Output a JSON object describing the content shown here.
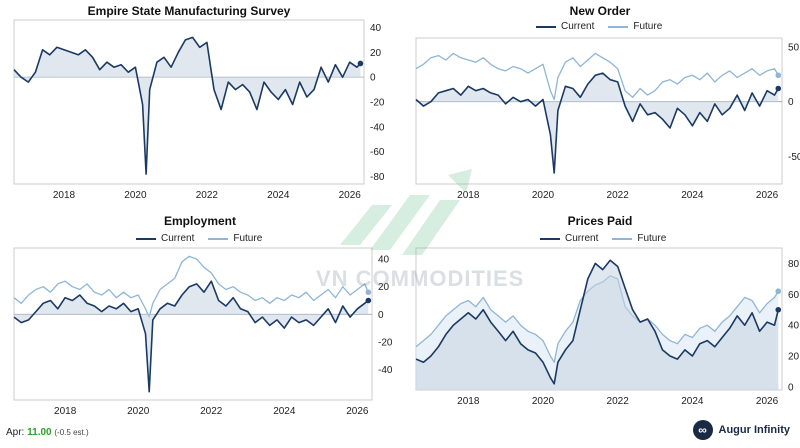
{
  "footer": {
    "label": "Apr:",
    "value": "11.00",
    "estimate": "(-0.5 est.)"
  },
  "brand": {
    "name": "Augur Infinity",
    "logo_icon": "infinity-icon"
  },
  "watermark": {
    "text": "VN COMMODITIES"
  },
  "colors": {
    "current": "#1b3a63",
    "future": "#8fb6d6",
    "fill": "#c7d3e2",
    "axis": "#cccccc"
  },
  "chart_data": [
    {
      "type": "line",
      "title": "Empire State Manufacturing Survey",
      "xlim": [
        2016.6,
        2026.4
      ],
      "ylim": [
        -86,
        46
      ],
      "xticks": [
        2018,
        2020,
        2022,
        2024,
        2026
      ],
      "yticks": [
        40,
        20,
        0,
        -20,
        -40,
        -60,
        -80
      ],
      "legend": null,
      "series": [
        {
          "name": "",
          "key": "current",
          "x": [
            2016.6,
            2016.8,
            2017.0,
            2017.2,
            2017.4,
            2017.6,
            2017.8,
            2018.0,
            2018.2,
            2018.4,
            2018.6,
            2018.8,
            2019.0,
            2019.2,
            2019.4,
            2019.6,
            2019.8,
            2020.0,
            2020.2,
            2020.3,
            2020.4,
            2020.6,
            2020.8,
            2021.0,
            2021.2,
            2021.4,
            2021.6,
            2021.8,
            2022.0,
            2022.2,
            2022.4,
            2022.6,
            2022.8,
            2023.0,
            2023.2,
            2023.4,
            2023.6,
            2023.8,
            2024.0,
            2024.2,
            2024.4,
            2024.6,
            2024.8,
            2025.0,
            2025.2,
            2025.4,
            2025.6,
            2025.8,
            2026.0,
            2026.2,
            2026.3
          ],
          "values": [
            6,
            0,
            -4,
            4,
            22,
            18,
            24,
            22,
            20,
            18,
            22,
            16,
            6,
            12,
            8,
            10,
            4,
            8,
            -22,
            -78,
            -10,
            12,
            16,
            8,
            20,
            30,
            32,
            24,
            28,
            -10,
            -26,
            -4,
            -10,
            -6,
            -12,
            -26,
            -4,
            -12,
            -18,
            -10,
            -22,
            -4,
            -16,
            -10,
            8,
            -4,
            10,
            0,
            12,
            8,
            11
          ]
        }
      ]
    },
    {
      "type": "line",
      "title": "New Order",
      "xlim": [
        2016.6,
        2026.4
      ],
      "ylim": [
        -75,
        58
      ],
      "xticks": [
        2018,
        2020,
        2022,
        2024,
        2026
      ],
      "yticks": [
        50,
        0,
        -50
      ],
      "legend": [
        "Current",
        "Future"
      ],
      "series": [
        {
          "name": "Current",
          "key": "current",
          "x": [
            2016.6,
            2016.8,
            2017.0,
            2017.2,
            2017.4,
            2017.6,
            2017.8,
            2018.0,
            2018.2,
            2018.4,
            2018.6,
            2018.8,
            2019.0,
            2019.2,
            2019.4,
            2019.6,
            2019.8,
            2020.0,
            2020.2,
            2020.3,
            2020.4,
            2020.6,
            2020.8,
            2021.0,
            2021.2,
            2021.4,
            2021.6,
            2021.8,
            2022.0,
            2022.2,
            2022.4,
            2022.6,
            2022.8,
            2023.0,
            2023.2,
            2023.4,
            2023.6,
            2023.8,
            2024.0,
            2024.2,
            2024.4,
            2024.6,
            2024.8,
            2025.0,
            2025.2,
            2025.4,
            2025.6,
            2025.8,
            2026.0,
            2026.2,
            2026.3
          ],
          "values": [
            2,
            -4,
            0,
            8,
            10,
            12,
            6,
            14,
            10,
            12,
            8,
            6,
            -2,
            4,
            0,
            2,
            -4,
            2,
            -30,
            -65,
            -8,
            14,
            12,
            4,
            16,
            24,
            26,
            20,
            18,
            -4,
            -18,
            -2,
            -12,
            -10,
            -16,
            -24,
            -6,
            -12,
            -22,
            -10,
            -18,
            -2,
            -12,
            -6,
            6,
            -8,
            8,
            -4,
            10,
            6,
            12
          ]
        },
        {
          "name": "Future",
          "key": "future",
          "x": [
            2016.6,
            2016.8,
            2017.0,
            2017.2,
            2017.4,
            2017.6,
            2017.8,
            2018.0,
            2018.2,
            2018.4,
            2018.6,
            2018.8,
            2019.0,
            2019.2,
            2019.4,
            2019.6,
            2019.8,
            2020.0,
            2020.2,
            2020.3,
            2020.4,
            2020.6,
            2020.8,
            2021.0,
            2021.2,
            2021.4,
            2021.6,
            2021.8,
            2022.0,
            2022.2,
            2022.4,
            2022.6,
            2022.8,
            2023.0,
            2023.2,
            2023.4,
            2023.6,
            2023.8,
            2024.0,
            2024.2,
            2024.4,
            2024.6,
            2024.8,
            2025.0,
            2025.2,
            2025.4,
            2025.6,
            2025.8,
            2026.0,
            2026.2,
            2026.3
          ],
          "values": [
            30,
            34,
            40,
            42,
            38,
            44,
            40,
            38,
            36,
            40,
            34,
            30,
            28,
            32,
            30,
            26,
            30,
            34,
            10,
            2,
            22,
            36,
            40,
            32,
            38,
            44,
            40,
            36,
            30,
            10,
            4,
            12,
            6,
            10,
            18,
            20,
            16,
            22,
            24,
            20,
            26,
            18,
            24,
            28,
            22,
            26,
            30,
            24,
            28,
            30,
            24
          ]
        }
      ]
    },
    {
      "type": "line",
      "title": "Employment",
      "xlim": [
        2016.6,
        2026.4
      ],
      "ylim": [
        -62,
        48
      ],
      "xticks": [
        2018,
        2020,
        2022,
        2024,
        2026
      ],
      "yticks": [
        40,
        20,
        0,
        -20,
        -40
      ],
      "legend": [
        "Current",
        "Future"
      ],
      "series": [
        {
          "name": "Current",
          "key": "current",
          "x": [
            2016.6,
            2016.8,
            2017.0,
            2017.2,
            2017.4,
            2017.6,
            2017.8,
            2018.0,
            2018.2,
            2018.4,
            2018.6,
            2018.8,
            2019.0,
            2019.2,
            2019.4,
            2019.6,
            2019.8,
            2020.0,
            2020.2,
            2020.3,
            2020.4,
            2020.6,
            2020.8,
            2021.0,
            2021.2,
            2021.4,
            2021.6,
            2021.8,
            2022.0,
            2022.2,
            2022.4,
            2022.6,
            2022.8,
            2023.0,
            2023.2,
            2023.4,
            2023.6,
            2023.8,
            2024.0,
            2024.2,
            2024.4,
            2024.6,
            2024.8,
            2025.0,
            2025.2,
            2025.4,
            2025.6,
            2025.8,
            2026.0,
            2026.2,
            2026.3
          ],
          "values": [
            -2,
            -6,
            -4,
            2,
            8,
            10,
            4,
            12,
            10,
            14,
            8,
            6,
            2,
            6,
            4,
            8,
            2,
            4,
            -14,
            -56,
            -4,
            4,
            8,
            6,
            14,
            20,
            22,
            16,
            24,
            10,
            6,
            12,
            4,
            2,
            -6,
            -2,
            -8,
            -4,
            -10,
            -2,
            -6,
            -4,
            -8,
            -2,
            4,
            -6,
            6,
            -2,
            4,
            8,
            10
          ]
        },
        {
          "name": "Future",
          "key": "future",
          "x": [
            2016.6,
            2016.8,
            2017.0,
            2017.2,
            2017.4,
            2017.6,
            2017.8,
            2018.0,
            2018.2,
            2018.4,
            2018.6,
            2018.8,
            2019.0,
            2019.2,
            2019.4,
            2019.6,
            2019.8,
            2020.0,
            2020.2,
            2020.3,
            2020.4,
            2020.6,
            2020.8,
            2021.0,
            2021.2,
            2021.4,
            2021.6,
            2021.8,
            2022.0,
            2022.2,
            2022.4,
            2022.6,
            2022.8,
            2023.0,
            2023.2,
            2023.4,
            2023.6,
            2023.8,
            2024.0,
            2024.2,
            2024.4,
            2024.6,
            2024.8,
            2025.0,
            2025.2,
            2025.4,
            2025.6,
            2025.8,
            2026.0,
            2026.2,
            2026.3
          ],
          "values": [
            12,
            8,
            14,
            18,
            20,
            16,
            22,
            24,
            20,
            18,
            22,
            16,
            14,
            18,
            12,
            16,
            12,
            14,
            4,
            -2,
            8,
            18,
            22,
            26,
            38,
            42,
            40,
            34,
            30,
            22,
            18,
            20,
            16,
            14,
            10,
            12,
            8,
            12,
            10,
            14,
            12,
            16,
            10,
            14,
            18,
            12,
            20,
            14,
            18,
            22,
            16
          ]
        }
      ]
    },
    {
      "type": "area",
      "title": "Prices Paid",
      "xlim": [
        2016.6,
        2026.4
      ],
      "ylim": [
        -2,
        90
      ],
      "xticks": [
        2018,
        2020,
        2022,
        2024,
        2026
      ],
      "yticks": [
        80,
        60,
        40,
        20,
        0
      ],
      "legend": [
        "Current",
        "Future"
      ],
      "series": [
        {
          "name": "Current",
          "key": "current",
          "x": [
            2016.6,
            2016.8,
            2017.0,
            2017.2,
            2017.4,
            2017.6,
            2017.8,
            2018.0,
            2018.2,
            2018.4,
            2018.6,
            2018.8,
            2019.0,
            2019.2,
            2019.4,
            2019.6,
            2019.8,
            2020.0,
            2020.2,
            2020.3,
            2020.4,
            2020.6,
            2020.8,
            2021.0,
            2021.2,
            2021.4,
            2021.6,
            2021.8,
            2022.0,
            2022.2,
            2022.4,
            2022.6,
            2022.8,
            2023.0,
            2023.2,
            2023.4,
            2023.6,
            2023.8,
            2024.0,
            2024.2,
            2024.4,
            2024.6,
            2024.8,
            2025.0,
            2025.2,
            2025.4,
            2025.6,
            2025.8,
            2026.0,
            2026.2,
            2026.3
          ],
          "values": [
            18,
            16,
            20,
            26,
            34,
            40,
            44,
            48,
            44,
            50,
            42,
            36,
            30,
            36,
            28,
            24,
            22,
            16,
            6,
            2,
            16,
            24,
            30,
            50,
            70,
            80,
            76,
            82,
            78,
            64,
            50,
            42,
            44,
            36,
            24,
            20,
            18,
            24,
            20,
            28,
            30,
            26,
            32,
            38,
            46,
            40,
            48,
            36,
            42,
            40,
            50
          ]
        },
        {
          "name": "Future",
          "key": "future",
          "x": [
            2016.6,
            2016.8,
            2017.0,
            2017.2,
            2017.4,
            2017.6,
            2017.8,
            2018.0,
            2018.2,
            2018.4,
            2018.6,
            2018.8,
            2019.0,
            2019.2,
            2019.4,
            2019.6,
            2019.8,
            2020.0,
            2020.2,
            2020.3,
            2020.4,
            2020.6,
            2020.8,
            2021.0,
            2021.2,
            2021.4,
            2021.6,
            2021.8,
            2022.0,
            2022.2,
            2022.4,
            2022.6,
            2022.8,
            2023.0,
            2023.2,
            2023.4,
            2023.6,
            2023.8,
            2024.0,
            2024.2,
            2024.4,
            2024.6,
            2024.8,
            2025.0,
            2025.2,
            2025.4,
            2025.6,
            2025.8,
            2026.0,
            2026.2,
            2026.3
          ],
          "values": [
            26,
            30,
            34,
            40,
            46,
            50,
            54,
            56,
            52,
            58,
            50,
            46,
            42,
            46,
            40,
            36,
            34,
            30,
            20,
            16,
            28,
            36,
            42,
            56,
            62,
            66,
            68,
            72,
            70,
            52,
            46,
            42,
            44,
            40,
            34,
            30,
            28,
            34,
            32,
            38,
            40,
            36,
            42,
            46,
            52,
            58,
            56,
            48,
            54,
            58,
            62
          ]
        }
      ]
    }
  ]
}
